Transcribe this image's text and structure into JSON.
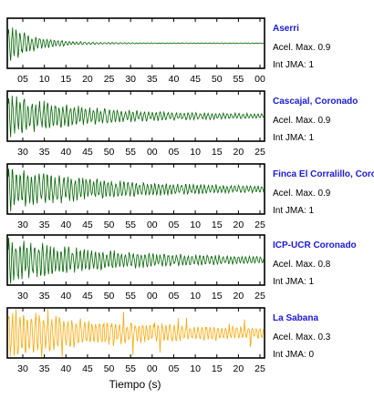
{
  "chart_data": [
    {
      "type": "line",
      "station": "Aserri",
      "info": [
        "Acel. Max. 0.9",
        "Int JMA: 1"
      ],
      "color": "#006400",
      "label_color": "#1a1adc",
      "x_ticks": [
        "05",
        "10",
        "15",
        "20",
        "25",
        "30",
        "35",
        "40",
        "45",
        "50",
        "55",
        "00"
      ],
      "envelope": {
        "onset": 0.0,
        "peak": 1.0,
        "decay": 0.1,
        "noise": 0.02,
        "spiky": 0.0
      }
    },
    {
      "type": "line",
      "station": "Cascajal, Coronado",
      "info": [
        "Acel. Max. 0.9",
        "Int JMA: 1"
      ],
      "color": "#006400",
      "label_color": "#1a1adc",
      "x_ticks": [
        "30",
        "35",
        "40",
        "45",
        "50",
        "55",
        "00",
        "05",
        "10",
        "15",
        "20",
        "25"
      ],
      "envelope": {
        "onset": 0.0,
        "peak": 1.0,
        "decay": 0.28,
        "noise": 0.1,
        "spiky": 0.0
      }
    },
    {
      "type": "line",
      "station": "Finca El Corralillo, Coronado",
      "info": [
        "Acel. Max. 0.9",
        "Int JMA: 1"
      ],
      "color": "#006400",
      "label_color": "#1a1adc",
      "x_ticks": [
        "30",
        "35",
        "40",
        "45",
        "50",
        "55",
        "00",
        "05",
        "10",
        "15",
        "20",
        "25"
      ],
      "envelope": {
        "onset": 0.0,
        "peak": 1.0,
        "decay": 0.35,
        "noise": 0.12,
        "spiky": 0.0
      }
    },
    {
      "type": "line",
      "station": "ICP-UCR Coronado",
      "info": [
        "Acel. Max. 0.8",
        "Int JMA: 1"
      ],
      "color": "#006400",
      "label_color": "#1a1adc",
      "x_ticks": [
        "30",
        "35",
        "40",
        "45",
        "50",
        "55",
        "00",
        "05",
        "10",
        "15",
        "20",
        "25"
      ],
      "envelope": {
        "onset": 0.0,
        "peak": 1.0,
        "decay": 0.35,
        "noise": 0.14,
        "spiky": 0.0
      }
    },
    {
      "type": "line",
      "station": "La Sabana",
      "info": [
        "Acel. Max. 0.3",
        "Int JMA: 0"
      ],
      "color": "#ffa500",
      "label_color": "#1a1adc",
      "x_ticks": [
        "30",
        "35",
        "40",
        "45",
        "50",
        "55",
        "00",
        "05",
        "10",
        "15",
        "20",
        "25"
      ],
      "envelope": {
        "onset": 0.0,
        "peak": 1.0,
        "decay": 0.4,
        "noise": 0.2,
        "spiky": 0.65
      }
    }
  ],
  "x_axis_title": "Tiempo (s)"
}
